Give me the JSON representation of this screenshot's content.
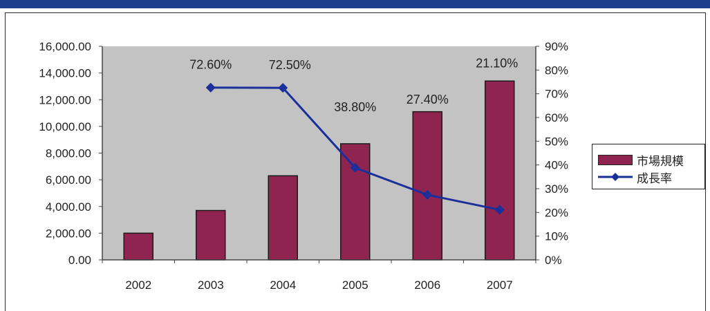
{
  "chart_data": {
    "type": "bar",
    "categories": [
      "2002",
      "2003",
      "2004",
      "2005",
      "2006",
      "2007"
    ],
    "series": [
      {
        "name": "市場規模",
        "type": "bar",
        "axis": "left",
        "values": [
          2000,
          3700,
          6300,
          8700,
          11100,
          13400
        ]
      },
      {
        "name": "成長率",
        "type": "line",
        "axis": "right",
        "values": [
          null,
          72.6,
          72.5,
          38.8,
          27.4,
          21.1
        ],
        "labels": [
          "",
          "72.60%",
          "72.50%",
          "38.80%",
          "27.40%",
          "21.10%"
        ]
      }
    ],
    "y_left": {
      "range": [
        0,
        16000
      ],
      "ticks": [
        0,
        2000,
        4000,
        6000,
        8000,
        10000,
        12000,
        14000,
        16000
      ],
      "tick_labels": [
        "0.00",
        "2,000.00",
        "4,000.00",
        "6,000.00",
        "8,000.00",
        "10,000.00",
        "12,000.00",
        "14,000.00",
        "16,000.00"
      ]
    },
    "y_right": {
      "range": [
        0,
        90
      ],
      "ticks": [
        0,
        10,
        20,
        30,
        40,
        50,
        60,
        70,
        80,
        90
      ],
      "tick_labels": [
        "0%",
        "10%",
        "20%",
        "30%",
        "40%",
        "50%",
        "60%",
        "70%",
        "80%",
        "90%"
      ]
    },
    "grid": false,
    "legend_position": "right",
    "colors": {
      "bar_fill": "#8f2450",
      "line": "#1a2f9a",
      "plot_bg": "#c3c3c3",
      "header_band": "#1f3f8c"
    }
  },
  "legend": {
    "bar_label": "市場規模",
    "line_label": "成長率"
  }
}
